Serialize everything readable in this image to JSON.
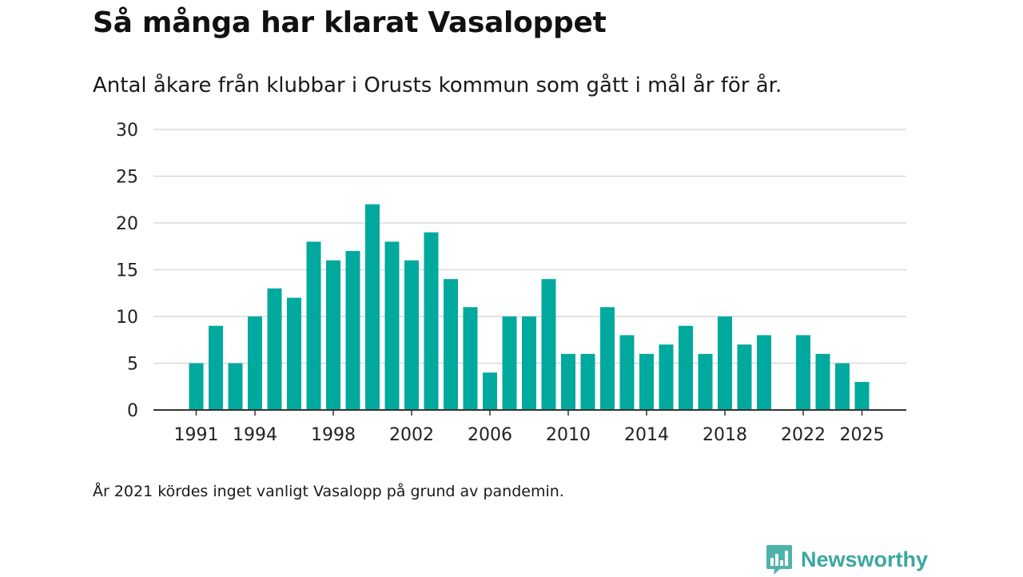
{
  "header": {
    "title": "Så många har klarat Vasaloppet",
    "subtitle": "Antal åkare från klubbar i Orusts kommun som gått i mål år för år."
  },
  "footer": {
    "note": "År 2021 kördes inget vanligt Vasalopp på grund av pandemin.",
    "brand": "Newsworthy",
    "brand_icon": "bar-chart-speech-bubble-icon"
  },
  "colors": {
    "bar": "#00a99d",
    "grid": "#d9d9d9",
    "axis": "#333333",
    "brand": "#3aa8a0"
  },
  "chart_data": {
    "type": "bar",
    "title": "Så många har klarat Vasaloppet",
    "xlabel": "",
    "ylabel": "",
    "ylim": [
      0,
      30
    ],
    "yticks": [
      0,
      5,
      10,
      15,
      20,
      25,
      30
    ],
    "xticks": [
      1991,
      1994,
      1998,
      2002,
      2006,
      2010,
      2014,
      2018,
      2022,
      2025
    ],
    "grid": true,
    "categories": [
      1991,
      1992,
      1993,
      1994,
      1995,
      1996,
      1997,
      1998,
      1999,
      2000,
      2001,
      2002,
      2003,
      2004,
      2005,
      2006,
      2007,
      2008,
      2009,
      2010,
      2011,
      2012,
      2013,
      2014,
      2015,
      2016,
      2017,
      2018,
      2019,
      2020,
      2021,
      2022,
      2023,
      2024,
      2025
    ],
    "values": [
      5,
      9,
      5,
      10,
      13,
      12,
      18,
      16,
      17,
      22,
      18,
      16,
      19,
      14,
      11,
      4,
      10,
      10,
      14,
      6,
      6,
      11,
      8,
      6,
      7,
      9,
      6,
      10,
      7,
      8,
      null,
      8,
      6,
      5,
      3
    ]
  }
}
